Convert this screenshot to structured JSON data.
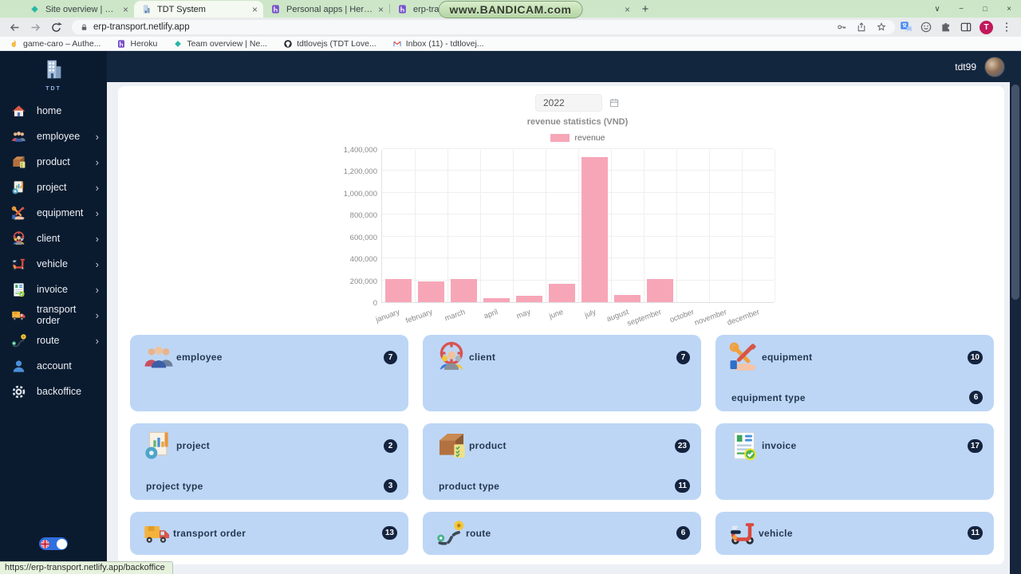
{
  "browser": {
    "watermark": "www.BANDICAM.com",
    "tabs": [
      {
        "title": "Site overview | erp-transport",
        "icon": "netlify-diamond-icon",
        "active": false
      },
      {
        "title": "TDT System",
        "icon": "building-icon",
        "active": true
      },
      {
        "title": "Personal apps | Heroku",
        "icon": "heroku-icon",
        "active": false
      },
      {
        "title": "erp-transport-api.heroku...",
        "icon": "heroku-icon",
        "active": false
      }
    ],
    "new_tab_label": "+",
    "window_controls": {
      "menu": "∨",
      "minimize": "−",
      "maximize": "□",
      "close": "×"
    },
    "url": "erp-transport.netlify.app",
    "bookmarks": [
      {
        "label": "game-caro – Authe...",
        "icon": "flame-icon"
      },
      {
        "label": "Heroku",
        "icon": "heroku-icon"
      },
      {
        "label": "Team overview | Ne...",
        "icon": "netlify-diamond-icon"
      },
      {
        "label": "tdtlovejs (TDT Love...",
        "icon": "github-icon"
      },
      {
        "label": "Inbox (11) - tdtlovej...",
        "icon": "gmail-icon"
      }
    ],
    "profile_initial": "T"
  },
  "sidebar": {
    "logo_text": "TDT",
    "items": [
      {
        "label": "home",
        "icon": "home-icon",
        "expandable": false
      },
      {
        "label": "employee",
        "icon": "employee-icon",
        "expandable": true
      },
      {
        "label": "product",
        "icon": "product-icon",
        "expandable": true
      },
      {
        "label": "project",
        "icon": "project-icon",
        "expandable": true
      },
      {
        "label": "equipment",
        "icon": "equipment-icon",
        "expandable": true
      },
      {
        "label": "client",
        "icon": "client-icon",
        "expandable": true
      },
      {
        "label": "vehicle",
        "icon": "vehicle-icon",
        "expandable": true
      },
      {
        "label": "invoice",
        "icon": "invoice-icon",
        "expandable": true
      },
      {
        "label": "transport order",
        "icon": "transport-order-icon",
        "expandable": true
      },
      {
        "label": "route",
        "icon": "route-icon",
        "expandable": true
      },
      {
        "label": "account",
        "icon": "account-icon",
        "expandable": false
      },
      {
        "label": "backoffice",
        "icon": "backoffice-icon",
        "expandable": false
      }
    ]
  },
  "header": {
    "username": "tdt99"
  },
  "main": {
    "year_value": "2022",
    "cards": [
      {
        "title": "employee",
        "count": "7",
        "icon": "employee-icon"
      },
      {
        "title": "client",
        "count": "7",
        "icon": "client-icon"
      },
      {
        "title": "equipment",
        "count": "10",
        "icon": "equipment-icon",
        "sub_title": "equipment type",
        "sub_count": "6"
      },
      {
        "title": "project",
        "count": "2",
        "icon": "project-icon",
        "sub_title": "project type",
        "sub_count": "3"
      },
      {
        "title": "product",
        "count": "23",
        "icon": "product-icon",
        "sub_title": "product type",
        "sub_count": "11"
      },
      {
        "title": "invoice",
        "count": "17",
        "icon": "invoice-icon"
      },
      {
        "title": "transport order",
        "count": "13",
        "icon": "transport-order-icon"
      },
      {
        "title": "route",
        "count": "6",
        "icon": "route-icon"
      },
      {
        "title": "vehicle",
        "count": "11",
        "icon": "vehicle-icon"
      }
    ]
  },
  "chart_data": {
    "type": "bar",
    "title": "revenue statistics (VND)",
    "legend": [
      "revenue"
    ],
    "legend_position": "top",
    "categories": [
      "january",
      "february",
      "march",
      "april",
      "may",
      "june",
      "july",
      "august",
      "september",
      "october",
      "november",
      "december"
    ],
    "values": [
      210000,
      190000,
      215000,
      35000,
      60000,
      170000,
      1330000,
      65000,
      215000,
      0,
      0,
      0
    ],
    "xlabel": "",
    "ylabel": "",
    "ylim": [
      0,
      1400000
    ],
    "ytick_step": 200000,
    "grid": true,
    "bar_color": "#f7a6b8"
  },
  "statusbar": {
    "url": "https://erp-transport.netlify.app/backoffice"
  },
  "colors": {
    "card_bg": "#bdd6f6",
    "badge_bg": "#14233e",
    "sidebar_bg": "#0b1b2f",
    "header_bg": "#12263e",
    "tabstrip_bg": "#cde6c8",
    "bar": "#f7a6b8"
  }
}
